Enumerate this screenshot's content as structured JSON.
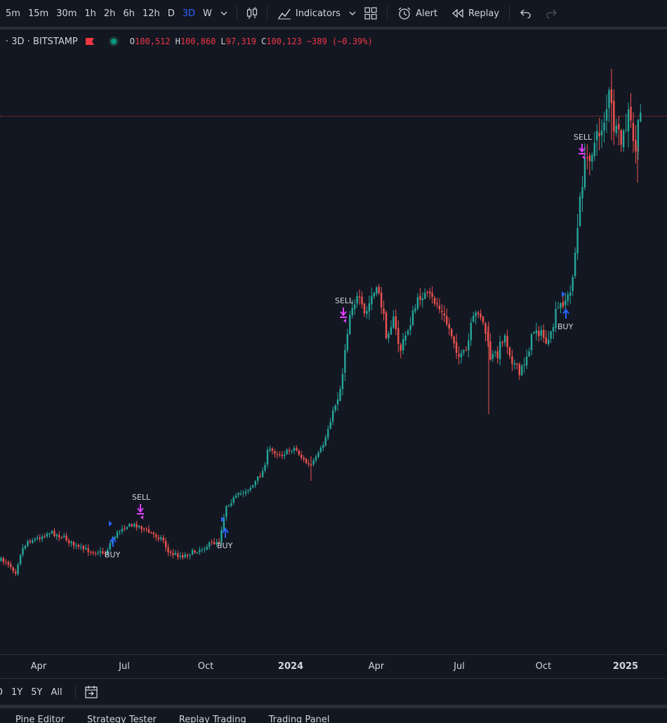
{
  "toolbar": {
    "timeframes": [
      {
        "label": "5m",
        "active": false
      },
      {
        "label": "15m",
        "active": false
      },
      {
        "label": "30m",
        "active": false
      },
      {
        "label": "1h",
        "active": false
      },
      {
        "label": "2h",
        "active": false
      },
      {
        "label": "6h",
        "active": false
      },
      {
        "label": "12h",
        "active": false
      },
      {
        "label": "D",
        "active": false
      },
      {
        "label": "3D",
        "active": true
      },
      {
        "label": "W",
        "active": false
      }
    ],
    "chart_type_icon": "candlestick-icon",
    "indicators_label": "Indicators",
    "alert_label": "Alert",
    "replay_label": "Replay"
  },
  "legend": {
    "symbol": "· 3D · BITSTAMP",
    "open_key": "O",
    "open": "100,512",
    "high_key": "H",
    "high": "100,860",
    "low_key": "L",
    "low": "97,319",
    "close_key": "C",
    "close": "100,123",
    "change": "−389 (−0.39%)"
  },
  "colors": {
    "background": "#131722",
    "up": "#26a69a",
    "down": "#ef5350",
    "buy": "#2962ff",
    "sell": "#e040fb",
    "active": "#2962ff"
  },
  "signals": [
    {
      "label": "SELL",
      "type": "sell"
    },
    {
      "label": "BUY",
      "type": "buy"
    },
    {
      "label": "BUY",
      "type": "buy"
    },
    {
      "label": "SELL",
      "type": "sell"
    },
    {
      "label": "SELL",
      "type": "sell"
    },
    {
      "label": "BUY",
      "type": "buy"
    }
  ],
  "time_axis": [
    {
      "label": "Apr",
      "year": false
    },
    {
      "label": "Jul",
      "year": false
    },
    {
      "label": "Oct",
      "year": false
    },
    {
      "label": "2024",
      "year": true
    },
    {
      "label": "Apr",
      "year": false
    },
    {
      "label": "Jul",
      "year": false
    },
    {
      "label": "Oct",
      "year": false
    },
    {
      "label": "2025",
      "year": true
    }
  ],
  "ranges": [
    "D",
    "1Y",
    "5Y",
    "All"
  ],
  "bottom_tabs": [
    "Pine Editor",
    "Strategy Tester",
    "Replay Trading",
    "Trading Panel"
  ]
}
